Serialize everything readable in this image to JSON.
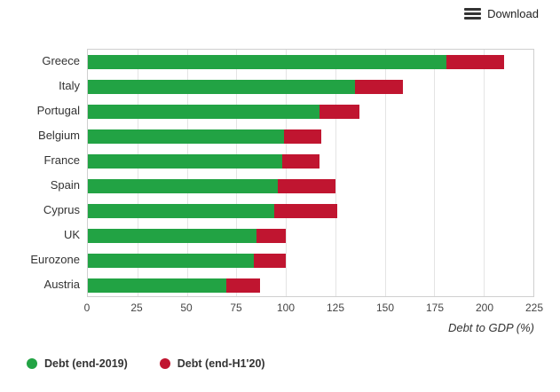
{
  "toolbar": {
    "download_label": "Download"
  },
  "chart_data": {
    "type": "bar",
    "orientation": "horizontal",
    "title": "",
    "xlabel": "Debt to GDP (%)",
    "ylabel": "",
    "categories": [
      "Greece",
      "Italy",
      "Portugal",
      "Belgium",
      "France",
      "Spain",
      "Cyprus",
      "UK",
      "Eurozone",
      "Austria"
    ],
    "series": [
      {
        "name": "Debt (end-2019)",
        "color": "#22a344",
        "values": [
          181,
          135,
          117,
          99,
          98,
          96,
          94,
          85,
          84,
          70
        ]
      },
      {
        "name": "Debt (end-H1'20)",
        "color": "#c01530",
        "values": [
          210,
          159,
          137,
          118,
          117,
          125,
          126,
          100,
          100,
          87
        ]
      }
    ],
    "series_note": "second series values are end-H1'20 totals; red segment drawn from end-2019 value to end-H1'20 value",
    "xlim": [
      0,
      225
    ],
    "xticks": [
      0,
      25,
      50,
      75,
      100,
      125,
      150,
      175,
      200,
      225
    ],
    "grid": true,
    "legend_position": "bottom-left"
  }
}
